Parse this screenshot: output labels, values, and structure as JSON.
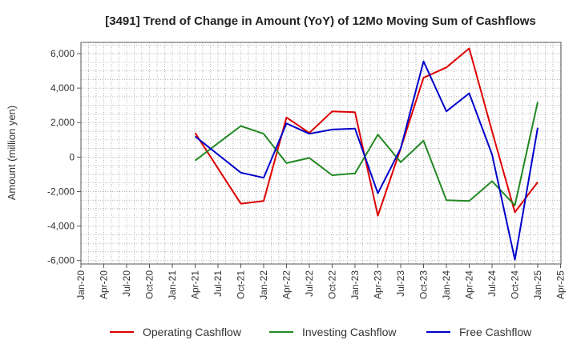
{
  "chart_data": {
    "type": "line",
    "title": "[3491]  Trend of Change in Amount (YoY) of 12Mo Moving Sum of Cashflows",
    "xlabel": "",
    "ylabel": "Amount (million yen)",
    "ylim": [
      -6200,
      6650
    ],
    "yticks": [
      6000,
      4000,
      2000,
      0,
      -2000,
      -4000,
      -6000
    ],
    "ytick_labels": [
      "6,000",
      "4,000",
      "2,000",
      "0",
      "-2,000",
      "-4,000",
      "-6,000"
    ],
    "categories": [
      "Jan-20",
      "Apr-20",
      "Jul-20",
      "Oct-20",
      "Jan-21",
      "Apr-21",
      "Jul-21",
      "Oct-21",
      "Jan-22",
      "Apr-22",
      "Jul-22",
      "Oct-22",
      "Jan-23",
      "Apr-23",
      "Jul-23",
      "Oct-23",
      "Jan-24",
      "Apr-24",
      "Jul-24",
      "Oct-24",
      "Jan-25",
      "Apr-25"
    ],
    "grid": true,
    "legend_position": "bottom",
    "series": [
      {
        "name": "Operating Cashflow",
        "color": "#dd0000",
        "values": [
          null,
          null,
          null,
          null,
          null,
          1400,
          -650,
          -2700,
          -2550,
          2300,
          1400,
          2650,
          2600,
          -3400,
          500,
          4600,
          5200,
          6300,
          1500,
          -3200,
          -1450,
          null
        ]
      },
      {
        "name": "Investing Cashflow",
        "color": "#228822",
        "values": [
          null,
          null,
          null,
          null,
          null,
          -200,
          800,
          1800,
          1350,
          -350,
          -50,
          -1050,
          -950,
          1300,
          -300,
          950,
          -2500,
          -2550,
          -1400,
          -2800,
          3200,
          null
        ]
      },
      {
        "name": "Free Cashflow",
        "color": "#0000cc",
        "values": [
          null,
          null,
          null,
          null,
          null,
          1200,
          150,
          -900,
          -1200,
          1950,
          1350,
          1600,
          1650,
          -2100,
          500,
          5550,
          2650,
          3700,
          150,
          -5950,
          1700,
          null
        ]
      }
    ]
  }
}
